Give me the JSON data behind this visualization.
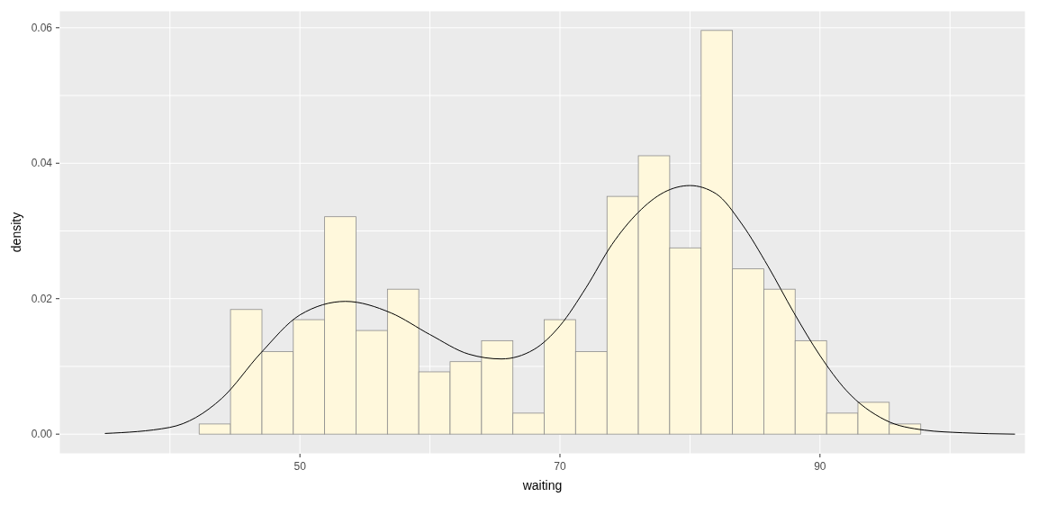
{
  "chart_data": {
    "type": "histogram",
    "xlabel": "waiting",
    "ylabel": "density",
    "xlim": [
      31.5,
      105.8
    ],
    "ylim": [
      -0.0029,
      0.0625
    ],
    "xticks": [
      {
        "value": 40,
        "label": null
      },
      50,
      {
        "value": 60,
        "label": null
      },
      70,
      {
        "value": 80,
        "label": null
      },
      90,
      {
        "value": 100,
        "label": null
      }
    ],
    "yticks": [
      {
        "value": 0,
        "label": "0.00"
      },
      {
        "value": 0.01,
        "label": null
      },
      0.02,
      {
        "value": 0.03,
        "label": null
      },
      0.04,
      {
        "value": 0.05,
        "label": null
      },
      0.06
    ],
    "grid": true,
    "legend": false,
    "series": [
      {
        "color": "#fff8dc",
        "bins": [
          42.25,
          44.66,
          47.08,
          49.49,
          51.9,
          54.31,
          56.73,
          59.14,
          61.55,
          63.97,
          66.38,
          68.79,
          71.2,
          73.62,
          76.03,
          78.44,
          80.86,
          83.27,
          85.68,
          88.09,
          90.51,
          92.92,
          95.33,
          97.75
        ],
        "values": [
          0.0015,
          0.0184,
          0.0122,
          0.0169,
          0.0321,
          0.0153,
          0.0214,
          0.0092,
          0.0107,
          0.0138,
          0.0031,
          0.0169,
          0.0122,
          0.0351,
          0.0411,
          0.0275,
          0.0596,
          0.0244,
          0.0214,
          0.0138,
          0.0031,
          0.0047,
          0.0015
        ]
      },
      {
        "type": "line",
        "color": "#000000",
        "x": [
          35,
          40,
          44,
          47,
          50,
          53.5,
          57,
          60,
          63,
          65.5,
          68,
          70,
          72,
          74,
          76,
          78,
          80,
          82,
          84,
          86,
          88,
          90,
          92,
          95,
          98,
          101,
          105
        ],
        "values": [
          0.0001,
          0.001,
          0.0053,
          0.012,
          0.0176,
          0.0196,
          0.0179,
          0.0147,
          0.0118,
          0.0111,
          0.0125,
          0.016,
          0.0216,
          0.028,
          0.0327,
          0.0357,
          0.0367,
          0.0355,
          0.031,
          0.0248,
          0.0179,
          0.0116,
          0.0065,
          0.0021,
          0.0006,
          0.0002,
          0
        ]
      }
    ]
  }
}
